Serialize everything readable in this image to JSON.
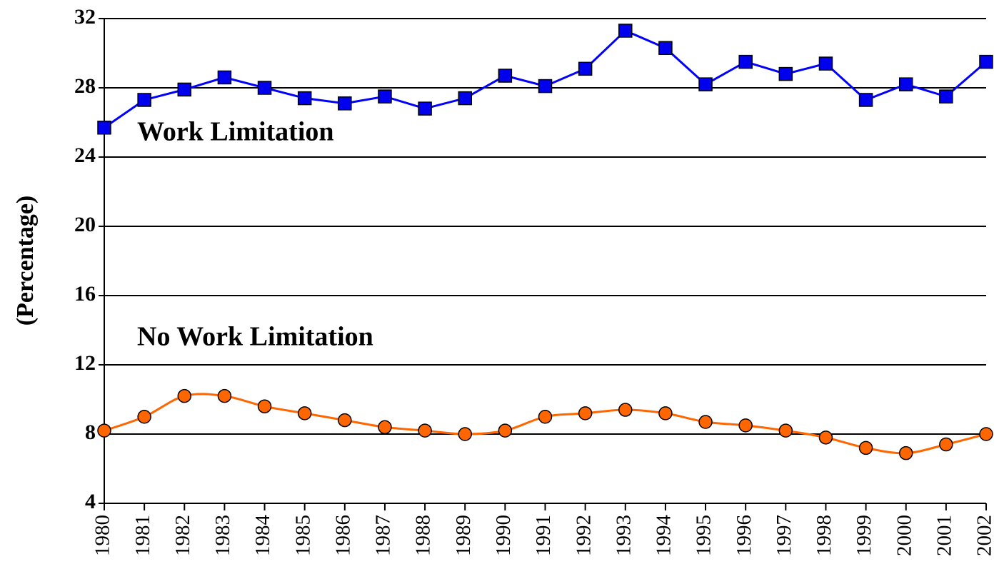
{
  "chart_data": {
    "type": "line",
    "y_label": "(Percentage)",
    "annotations": [
      "Work Limitation",
      "No Work Limitation"
    ],
    "categories": [
      "1980",
      "1981",
      "1982",
      "1983",
      "1984",
      "1985",
      "1986",
      "1987",
      "1988",
      "1989",
      "1990",
      "1991",
      "1992",
      "1993",
      "1994",
      "1995",
      "1996",
      "1997",
      "1998",
      "1999",
      "2000",
      "2001",
      "2002"
    ],
    "series": [
      {
        "name": "Work Limitation",
        "color": "#0000ff",
        "marker": "square",
        "marker_color": "#0000ee",
        "smooth": false,
        "values": [
          25.7,
          27.3,
          27.9,
          28.6,
          28.0,
          27.4,
          27.1,
          27.5,
          26.8,
          27.4,
          28.7,
          28.1,
          29.1,
          31.3,
          30.3,
          28.2,
          29.5,
          28.8,
          29.4,
          27.3,
          28.2,
          27.5,
          29.5
        ]
      },
      {
        "name": "No Work Limitation",
        "color": "#ff6600",
        "marker": "circle",
        "marker_color": "#ff6600",
        "smooth": true,
        "values": [
          8.2,
          9.0,
          10.2,
          10.2,
          9.6,
          9.2,
          8.8,
          8.4,
          8.2,
          8.0,
          8.2,
          9.0,
          9.2,
          9.4,
          9.2,
          8.7,
          8.5,
          8.2,
          7.8,
          7.2,
          6.9,
          7.4,
          8.0
        ]
      }
    ],
    "ylim": [
      4,
      32
    ],
    "yticks": [
      4,
      8,
      12,
      16,
      20,
      24,
      28,
      32
    ],
    "grid": true
  }
}
